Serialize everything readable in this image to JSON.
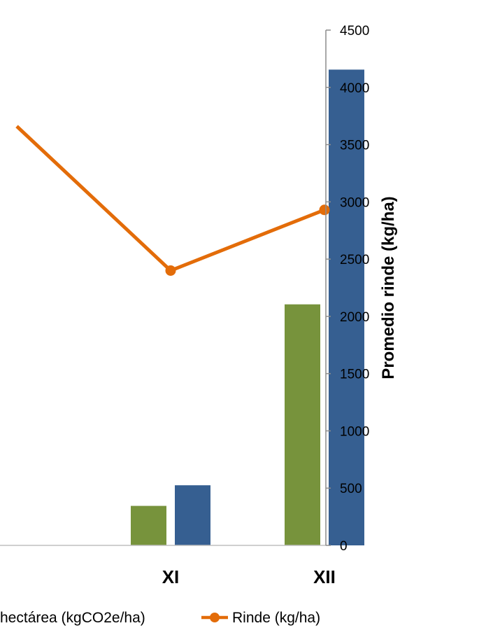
{
  "chart_data": {
    "type": "bar",
    "categories": [
      "XI",
      "XII"
    ],
    "series": [
      {
        "name": "",
        "kind": "bar",
        "color": "#77933C",
        "values": [
          345,
          2105
        ]
      },
      {
        "name": "",
        "kind": "bar",
        "color": "#365F91",
        "values": [
          525,
          4155
        ]
      },
      {
        "name": "Rinde (kg/ha)",
        "kind": "line",
        "marker": "circle",
        "color": "#E36C09",
        "axis": "right",
        "values": [
          2400,
          2930
        ],
        "leading_value": 3660
      }
    ],
    "right_axis": {
      "label": "Promedio rinde (kg/ha)",
      "ylim": [
        0,
        4500
      ],
      "ticks": [
        "0",
        "500",
        "1000",
        "1500",
        "2000",
        "2500",
        "3000",
        "3500",
        "4000",
        "4500"
      ]
    },
    "legend": {
      "position": "bottom",
      "items": [
        {
          "label": "hectárea (kgCO2e/ha)",
          "symbol": "none"
        },
        {
          "label": "Rinde (kg/ha)",
          "symbol": "line-marker",
          "color": "#E36C09"
        }
      ]
    },
    "grid": false
  }
}
